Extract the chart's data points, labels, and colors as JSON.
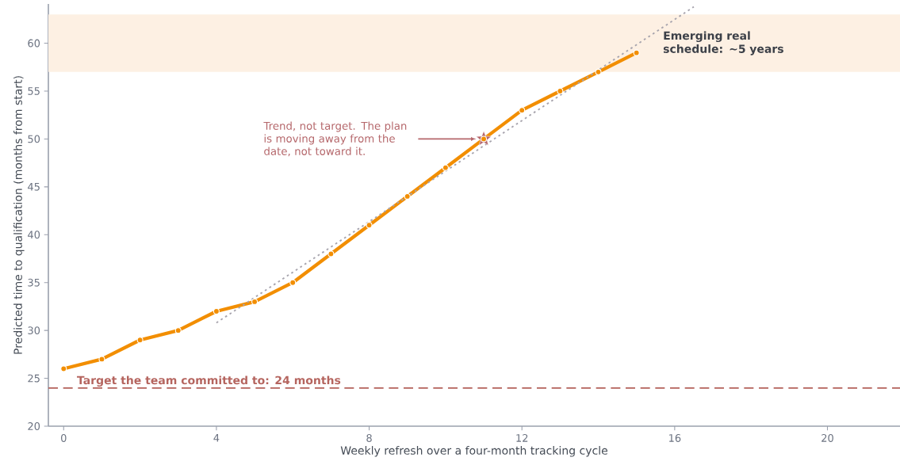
{
  "chart_data": {
    "type": "line",
    "xlabel": "Weekly refresh over a four-month tracking cycle",
    "ylabel": "Predicted time to qualification (months from start)",
    "xlim": [
      -0.4,
      21.9
    ],
    "ylim": [
      20,
      64.1
    ],
    "xticks": [
      0,
      4,
      8,
      12,
      16,
      20
    ],
    "yticks": [
      20,
      25,
      30,
      35,
      40,
      45,
      50,
      55,
      60
    ],
    "grid": false,
    "marker": "circle",
    "line_style": "solid",
    "series": [
      {
        "color": "#f28e00",
        "x": [
          0,
          1,
          2,
          3,
          4,
          5,
          6,
          7,
          8,
          9,
          10,
          11,
          12,
          13,
          14,
          15
        ],
        "values": [
          26,
          27,
          29,
          30,
          32,
          33,
          35,
          38,
          41,
          44,
          47,
          50,
          53,
          55,
          57,
          59
        ]
      },
      {
        "color": "#a7a4ad",
        "marker": "none",
        "line_style": "dotted",
        "x": [
          4,
          16.5
        ],
        "values": [
          30.8,
          63.8
        ]
      },
      {
        "type": "scatter",
        "color": "#b5676b",
        "marker": "star",
        "x": [
          11
        ],
        "values": [
          50
        ]
      }
    ],
    "ref_lines": [
      {
        "axis": "y",
        "value": 24,
        "label": "Target the team committed to: 24 months",
        "color": "#b5655f",
        "line_style": "dashed"
      }
    ],
    "bands": [
      {
        "axis": "y",
        "from": 57,
        "to": 63,
        "label": "Emerging real schedule: ~5 years",
        "color": "#fdf0e3"
      }
    ],
    "annotations": [
      "Trend, not target. The plan is moving away from the date, not toward it."
    ]
  }
}
